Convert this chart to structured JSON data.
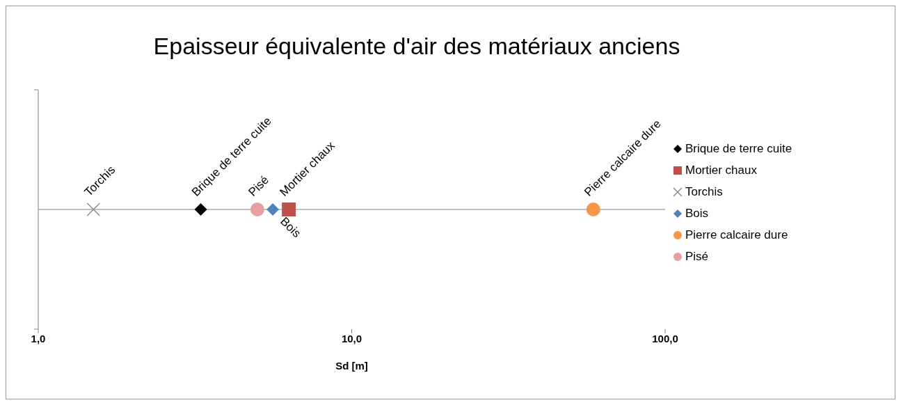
{
  "chart_data": {
    "type": "scatter",
    "title": "Epaisseur équivalente d'air des matériaux anciens",
    "xlabel": "Sd [m]",
    "log": "x",
    "orientation": "horizontal",
    "categories": [
      null
    ],
    "series": [
      {
        "name": "Brique de terre cuite",
        "color": "#000000",
        "marker": "diamond",
        "values": [
          3.3
        ]
      },
      {
        "name": "Mortier chaux",
        "color": "#c0504d",
        "marker": "square",
        "values": [
          6.3
        ]
      },
      {
        "name": "Torchis",
        "color": "#8c8c8c",
        "marker": "cross",
        "values": [
          1.5
        ]
      },
      {
        "name": "Bois",
        "color": "#4f81bd",
        "marker": "diamond",
        "values": [
          5.6
        ]
      },
      {
        "name": "Pierre calcaire dure",
        "color": "#f79646",
        "marker": "circle",
        "values": [
          59
        ]
      },
      {
        "name": "Pisé",
        "color": "#e6a0a0",
        "marker": "circle",
        "values": [
          5
        ]
      }
    ],
    "xlim": [
      1,
      100
    ],
    "xticks": [
      {
        "value": 1,
        "label": "1,0"
      },
      {
        "value": 10,
        "label": "10,0"
      },
      {
        "value": 100,
        "label": "100,0"
      }
    ],
    "tick_labels": "x",
    "legend": "right"
  }
}
